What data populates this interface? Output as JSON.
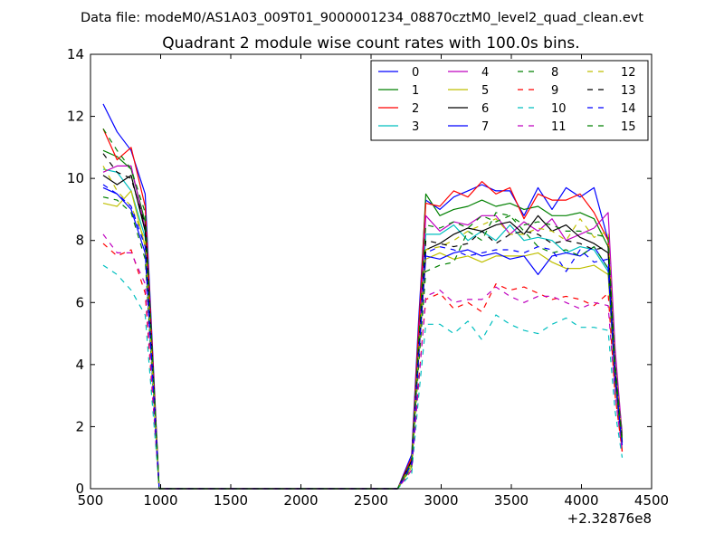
{
  "figure": {
    "suptitle": "Data file: modeM0/AS1A03_009T01_9000001234_08870cztM0_level2_quad_clean.evt",
    "title": "Quadrant 2 module wise count rates with 100.0s bins.",
    "x_offset_label": "+2.32876e8"
  },
  "chart_data": {
    "type": "line",
    "title": "Quadrant 2 module wise count rates with 100.0s bins.",
    "xlabel": "",
    "ylabel": "",
    "x_offset": "+2.32876e8",
    "xlim": [
      500,
      4500
    ],
    "ylim": [
      0,
      14
    ],
    "x_ticks": [
      500,
      1000,
      1500,
      2000,
      2500,
      3000,
      3500,
      4000,
      4500
    ],
    "y_ticks": [
      0,
      2,
      4,
      6,
      8,
      10,
      12,
      14
    ],
    "grid": false,
    "legend_position": "top-right",
    "legend_columns": 4,
    "x": [
      590,
      690,
      790,
      890,
      990,
      1090,
      1190,
      1290,
      1390,
      1490,
      1590,
      1690,
      1790,
      1890,
      1990,
      2090,
      2190,
      2290,
      2390,
      2490,
      2590,
      2690,
      2790,
      2840,
      2890,
      2990,
      3090,
      3190,
      3290,
      3390,
      3490,
      3590,
      3690,
      3790,
      3890,
      3990,
      4090,
      4190,
      4240,
      4290
    ],
    "series": [
      {
        "name": "0",
        "color": "#0000ff",
        "dash": "solid",
        "values": [
          12.4,
          11.5,
          10.9,
          9.5,
          0,
          0,
          0,
          0,
          0,
          0,
          0,
          0,
          0,
          0,
          0,
          0,
          0,
          0,
          0,
          0,
          0,
          0,
          1.1,
          5.5,
          9.3,
          9.0,
          9.4,
          9.6,
          9.8,
          9.6,
          9.6,
          8.8,
          9.7,
          9.0,
          9.7,
          9.4,
          9.7,
          8.0,
          4.0,
          1.5
        ]
      },
      {
        "name": "1",
        "color": "#008000",
        "dash": "solid",
        "values": [
          10.9,
          10.7,
          10.3,
          8.6,
          0,
          0,
          0,
          0,
          0,
          0,
          0,
          0,
          0,
          0,
          0,
          0,
          0,
          0,
          0,
          0,
          0,
          0,
          0.9,
          5.0,
          9.5,
          8.8,
          9.0,
          9.1,
          9.3,
          9.1,
          9.2,
          9.0,
          9.1,
          8.8,
          8.8,
          8.9,
          8.7,
          7.8,
          4.0,
          1.8
        ]
      },
      {
        "name": "2",
        "color": "#ff0000",
        "dash": "solid",
        "values": [
          11.6,
          10.6,
          11.0,
          9.1,
          0,
          0,
          0,
          0,
          0,
          0,
          0,
          0,
          0,
          0,
          0,
          0,
          0,
          0,
          0,
          0,
          0,
          0,
          1.0,
          5.2,
          9.2,
          9.1,
          9.6,
          9.4,
          9.9,
          9.5,
          9.7,
          8.7,
          9.5,
          9.3,
          9.3,
          9.5,
          8.9,
          8.0,
          3.5,
          1.2
        ]
      },
      {
        "name": "3",
        "color": "#00bfbf",
        "dash": "solid",
        "values": [
          10.3,
          10.2,
          9.6,
          8.1,
          0,
          0,
          0,
          0,
          0,
          0,
          0,
          0,
          0,
          0,
          0,
          0,
          0,
          0,
          0,
          0,
          0,
          0,
          0.8,
          4.6,
          8.2,
          8.2,
          8.5,
          8.0,
          8.3,
          8.0,
          8.5,
          8.0,
          8.1,
          8.0,
          7.6,
          7.8,
          7.7,
          7.0,
          3.5,
          1.6
        ]
      },
      {
        "name": "4",
        "color": "#bf00bf",
        "dash": "solid",
        "values": [
          10.2,
          10.4,
          10.4,
          8.4,
          0,
          0,
          0,
          0,
          0,
          0,
          0,
          0,
          0,
          0,
          0,
          0,
          0,
          0,
          0,
          0,
          0,
          0,
          0.9,
          4.7,
          8.8,
          8.3,
          8.6,
          8.5,
          8.8,
          8.8,
          8.2,
          8.6,
          8.3,
          8.7,
          8.0,
          8.2,
          8.4,
          8.9,
          4.5,
          1.7
        ]
      },
      {
        "name": "5",
        "color": "#bfbf00",
        "dash": "solid",
        "values": [
          9.2,
          9.1,
          9.6,
          7.8,
          0,
          0,
          0,
          0,
          0,
          0,
          0,
          0,
          0,
          0,
          0,
          0,
          0,
          0,
          0,
          0,
          0,
          0,
          0.7,
          4.2,
          7.4,
          7.6,
          7.4,
          7.5,
          7.3,
          7.5,
          7.5,
          7.5,
          7.6,
          7.3,
          7.1,
          7.1,
          7.2,
          6.9,
          3.4,
          1.3
        ]
      },
      {
        "name": "6",
        "color": "#000000",
        "dash": "solid",
        "values": [
          10.1,
          9.8,
          10.1,
          8.3,
          0,
          0,
          0,
          0,
          0,
          0,
          0,
          0,
          0,
          0,
          0,
          0,
          0,
          0,
          0,
          0,
          0,
          0,
          0.9,
          4.5,
          7.7,
          7.9,
          8.2,
          8.4,
          8.3,
          8.5,
          8.6,
          8.2,
          8.8,
          8.3,
          8.5,
          8.1,
          7.9,
          7.6,
          3.6,
          1.5
        ]
      },
      {
        "name": "7",
        "color": "#0000ff",
        "dash": "solid",
        "values": [
          9.7,
          9.5,
          9.0,
          7.6,
          0,
          0,
          0,
          0,
          0,
          0,
          0,
          0,
          0,
          0,
          0,
          0,
          0,
          0,
          0,
          0,
          0,
          0,
          0.8,
          4.3,
          7.5,
          7.4,
          7.6,
          7.7,
          7.5,
          7.6,
          7.4,
          7.5,
          6.9,
          7.5,
          7.6,
          7.5,
          7.8,
          7.1,
          3.5,
          1.4
        ]
      },
      {
        "name": "8",
        "color": "#008000",
        "dash": "dashed",
        "values": [
          9.4,
          9.3,
          8.9,
          7.4,
          0,
          0,
          0,
          0,
          0,
          0,
          0,
          0,
          0,
          0,
          0,
          0,
          0,
          0,
          0,
          0,
          0,
          0,
          0.7,
          4.0,
          7.0,
          7.2,
          7.3,
          8.3,
          8.0,
          8.9,
          8.8,
          8.3,
          7.8,
          7.6,
          7.7,
          7.5,
          7.8,
          7.1,
          3.5,
          1.4
        ]
      },
      {
        "name": "9",
        "color": "#ff0000",
        "dash": "dashed",
        "values": [
          7.9,
          7.5,
          7.7,
          6.3,
          0,
          0,
          0,
          0,
          0,
          0,
          0,
          0,
          0,
          0,
          0,
          0,
          0,
          0,
          0,
          0,
          0,
          0,
          0.6,
          3.5,
          6.1,
          6.3,
          5.8,
          6.0,
          5.7,
          6.6,
          6.4,
          6.5,
          6.3,
          6.1,
          6.2,
          6.1,
          5.9,
          6.3,
          3.0,
          1.2
        ]
      },
      {
        "name": "10",
        "color": "#00bfbf",
        "dash": "dashed",
        "values": [
          7.2,
          6.9,
          6.4,
          5.6,
          0,
          0,
          0,
          0,
          0,
          0,
          0,
          0,
          0,
          0,
          0,
          0,
          0,
          0,
          0,
          0,
          0,
          0,
          0.5,
          3.0,
          5.3,
          5.3,
          5.0,
          5.4,
          4.8,
          5.6,
          5.3,
          5.1,
          5.0,
          5.3,
          5.5,
          5.2,
          5.2,
          5.1,
          2.5,
          1.0
        ]
      },
      {
        "name": "11",
        "color": "#bf00bf",
        "dash": "dashed",
        "values": [
          8.2,
          7.6,
          7.6,
          6.6,
          0,
          0,
          0,
          0,
          0,
          0,
          0,
          0,
          0,
          0,
          0,
          0,
          0,
          0,
          0,
          0,
          0,
          0,
          0.6,
          3.4,
          6.2,
          6.4,
          6.0,
          6.1,
          6.1,
          6.5,
          6.2,
          6.0,
          6.2,
          6.2,
          6.0,
          5.8,
          6.0,
          5.9,
          3.0,
          1.2
        ]
      },
      {
        "name": "12",
        "color": "#bfbf00",
        "dash": "dashed",
        "values": [
          10.4,
          9.6,
          9.1,
          8.0,
          0,
          0,
          0,
          0,
          0,
          0,
          0,
          0,
          0,
          0,
          0,
          0,
          0,
          0,
          0,
          0,
          0,
          0,
          0.8,
          4.4,
          7.7,
          7.8,
          8.0,
          8.3,
          8.5,
          8.7,
          8.2,
          8.2,
          8.4,
          8.3,
          8.0,
          8.7,
          8.1,
          8.3,
          4.0,
          1.6
        ]
      },
      {
        "name": "13",
        "color": "#000000",
        "dash": "dashed",
        "values": [
          10.8,
          10.2,
          10.0,
          8.5,
          0,
          0,
          0,
          0,
          0,
          0,
          0,
          0,
          0,
          0,
          0,
          0,
          0,
          0,
          0,
          0,
          0,
          0,
          0.9,
          4.6,
          8.0,
          7.9,
          7.8,
          7.9,
          8.3,
          7.9,
          8.2,
          8.3,
          8.2,
          7.9,
          8.0,
          7.9,
          7.7,
          7.8,
          3.8,
          1.5
        ]
      },
      {
        "name": "14",
        "color": "#0000ff",
        "dash": "dashed",
        "values": [
          9.8,
          9.5,
          9.1,
          7.8,
          0,
          0,
          0,
          0,
          0,
          0,
          0,
          0,
          0,
          0,
          0,
          0,
          0,
          0,
          0,
          0,
          0,
          0,
          0.8,
          4.3,
          7.6,
          7.8,
          7.7,
          7.5,
          7.6,
          7.7,
          7.7,
          7.6,
          7.8,
          7.7,
          7.0,
          7.7,
          7.3,
          7.4,
          3.6,
          1.4
        ]
      },
      {
        "name": "15",
        "color": "#008000",
        "dash": "dashed",
        "values": [
          11.6,
          10.9,
          10.3,
          8.9,
          0,
          0,
          0,
          0,
          0,
          0,
          0,
          0,
          0,
          0,
          0,
          0,
          0,
          0,
          0,
          0,
          0,
          0,
          0.9,
          4.8,
          8.5,
          8.4,
          8.6,
          8.4,
          8.8,
          8.6,
          8.8,
          8.5,
          8.6,
          8.5,
          8.3,
          8.3,
          8.2,
          8.1,
          4.0,
          1.6
        ]
      }
    ]
  }
}
